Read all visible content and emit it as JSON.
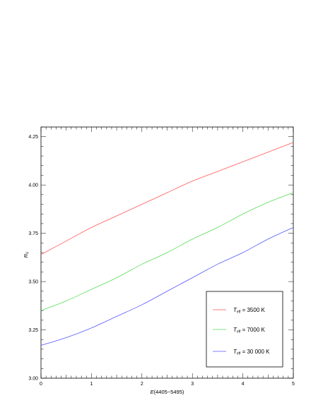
{
  "chart_data": {
    "type": "line",
    "title": "",
    "xlabel": "E(4405−5495)",
    "xlabel_parts": {
      "var": "E",
      "rest": "(4405−5495)"
    },
    "ylabel": "R_V",
    "ylabel_parts": {
      "var": "R",
      "sub": "V"
    },
    "xlim": [
      0,
      5
    ],
    "ylim": [
      3.0,
      4.3
    ],
    "xticks": [
      0,
      1,
      2,
      3,
      4,
      5
    ],
    "xtick_labels": [
      "0",
      "1",
      "2",
      "3",
      "4",
      "5"
    ],
    "yticks": [
      3.0,
      3.25,
      3.5,
      3.75,
      4.0,
      4.25
    ],
    "ytick_labels": [
      "3.00",
      "3.25",
      "3.50",
      "3.75",
      "4.00",
      "4.25"
    ],
    "grid": false,
    "legend_position": "bottom-right",
    "x": [
      0,
      0.5,
      1,
      1.5,
      2,
      2.5,
      3,
      3.5,
      4,
      4.5,
      5
    ],
    "series": [
      {
        "name": "T_eff = 3500 K",
        "name_parts": {
          "var": "T",
          "sub": "eff",
          "rest": " = 3500 K"
        },
        "color": "#ff5555",
        "values": [
          3.64,
          3.71,
          3.78,
          3.84,
          3.9,
          3.96,
          4.02,
          4.07,
          4.12,
          4.17,
          4.22
        ]
      },
      {
        "name": "T_eff = 7000 K",
        "name_parts": {
          "var": "T",
          "sub": "eff",
          "rest": " = 7000 K"
        },
        "color": "#55dd55",
        "values": [
          3.35,
          3.4,
          3.46,
          3.52,
          3.59,
          3.65,
          3.72,
          3.78,
          3.85,
          3.91,
          3.96
        ]
      },
      {
        "name": "T_eff = 30 000 K",
        "name_parts": {
          "var": "T",
          "sub": "eff",
          "rest": " = 30 000 K"
        },
        "color": "#5555ff",
        "values": [
          3.17,
          3.21,
          3.26,
          3.32,
          3.38,
          3.45,
          3.52,
          3.59,
          3.65,
          3.72,
          3.78
        ]
      }
    ]
  }
}
